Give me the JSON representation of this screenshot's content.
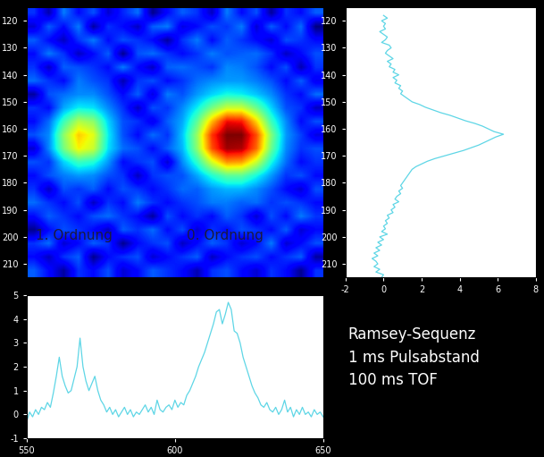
{
  "chart_data": [
    {
      "type": "heatmap",
      "xlim": [
        550,
        650
      ],
      "ylim": [
        215,
        115
      ],
      "yticks": [
        120,
        130,
        140,
        150,
        160,
        170,
        180,
        190,
        200,
        210
      ],
      "tick_labels": "y",
      "annotations": [
        "1. Ordnung",
        "0. Ordnung"
      ],
      "cells": [
        [
          0.3,
          -0.6,
          0.8,
          0.0,
          0.5,
          -0.4,
          0.2,
          0.7,
          -0.8,
          0.0,
          0.6,
          0.3,
          -0.5,
          0.8,
          0.0,
          0.5,
          -0.7,
          0.3,
          0.0,
          0.6
        ],
        [
          -0.4,
          0.6,
          0.0,
          0.8,
          -0.7,
          0.3,
          0.0,
          -0.5,
          0.6,
          0.8,
          -0.3,
          0.0,
          0.5,
          0.3,
          0.8,
          -0.4,
          0.6,
          0.0,
          0.7,
          -0.9
        ],
        [
          0.6,
          0.0,
          -0.5,
          0.3,
          0.8,
          0.0,
          0.5,
          0.3,
          0.0,
          -0.7,
          0.3,
          0.8,
          0.0,
          0.6,
          0.3,
          0.0,
          -0.4,
          0.5,
          0.3,
          0.0
        ],
        [
          0.0,
          0.8,
          0.3,
          -0.5,
          0.0,
          0.6,
          -0.8,
          0.5,
          0.7,
          0.3,
          0.0,
          0.3,
          0.8,
          0.5,
          0.6,
          0.7,
          0.3,
          -0.5,
          0.0,
          0.5
        ],
        [
          0.3,
          -0.5,
          0.6,
          0.5,
          0.3,
          0.0,
          0.8,
          0.0,
          -0.5,
          0.6,
          0.7,
          0.5,
          0.3,
          0.9,
          0.8,
          0.5,
          0.0,
          0.5,
          -0.6,
          0.3
        ],
        [
          0.7,
          0.3,
          0.0,
          0.8,
          0.5,
          0.3,
          -0.6,
          0.3,
          0.5,
          0.0,
          0.3,
          0.7,
          0.9,
          1.0,
          1.0,
          0.8,
          0.5,
          0.0,
          0.6,
          -0.2
        ],
        [
          -0.7,
          0.5,
          0.7,
          0.9,
          0.9,
          0.5,
          0.0,
          0.6,
          -0.3,
          0.8,
          0.5,
          1.0,
          1.4,
          1.7,
          1.6,
          1.3,
          0.9,
          0.3,
          0.0,
          0.7
        ],
        [
          0.3,
          0.0,
          1.1,
          1.6,
          1.5,
          0.9,
          0.3,
          -0.5,
          0.5,
          0.3,
          0.9,
          1.6,
          2.5,
          3.2,
          3.2,
          2.4,
          1.4,
          0.5,
          0.3,
          -0.5
        ],
        [
          0.0,
          0.7,
          2.0,
          3.0,
          2.7,
          1.4,
          0.5,
          0.3,
          -0.2,
          0.6,
          1.1,
          2.3,
          4.0,
          5.3,
          5.2,
          3.8,
          2.0,
          0.9,
          0.0,
          0.5
        ],
        [
          0.5,
          0.9,
          2.7,
          3.9,
          3.4,
          1.6,
          0.5,
          0.0,
          0.7,
          0.3,
          1.3,
          2.8,
          5.0,
          6.0,
          6.0,
          4.8,
          2.6,
          1.0,
          0.4,
          -0.3
        ],
        [
          -0.4,
          0.9,
          2.5,
          3.6,
          3.2,
          1.5,
          0.7,
          0.5,
          0.0,
          0.6,
          1.2,
          2.7,
          4.8,
          5.8,
          5.7,
          4.6,
          2.4,
          0.9,
          0.3,
          0.5
        ],
        [
          0.5,
          0.3,
          1.4,
          2.0,
          1.8,
          1.0,
          0.0,
          0.3,
          0.5,
          -0.4,
          0.9,
          1.9,
          3.3,
          4.3,
          4.2,
          3.2,
          1.7,
          0.7,
          0.0,
          0.3
        ],
        [
          0.0,
          0.5,
          0.8,
          1.0,
          0.9,
          0.5,
          0.3,
          -0.5,
          0.3,
          0.5,
          0.5,
          1.1,
          1.8,
          2.3,
          2.3,
          1.7,
          1.0,
          0.3,
          0.5,
          0.0
        ],
        [
          0.3,
          -0.5,
          0.5,
          0.3,
          0.6,
          0.0,
          0.5,
          0.3,
          0.0,
          0.3,
          0.7,
          0.6,
          1.0,
          1.2,
          1.2,
          0.9,
          0.5,
          0.0,
          -0.4,
          0.5
        ],
        [
          0.7,
          0.3,
          0.0,
          0.5,
          -0.5,
          0.3,
          0.0,
          0.8,
          0.3,
          0.0,
          0.3,
          0.5,
          0.8,
          0.8,
          0.6,
          0.7,
          0.3,
          0.5,
          0.3,
          0.0
        ],
        [
          0.0,
          0.6,
          0.3,
          0.0,
          0.5,
          0.7,
          0.3,
          0.0,
          -0.7,
          0.5,
          0.0,
          0.3,
          0.0,
          0.6,
          0.3,
          -0.4,
          0.5,
          0.0,
          0.8,
          0.3
        ],
        [
          -0.8,
          0.0,
          0.5,
          0.3,
          0.0,
          -0.5,
          0.6,
          0.3,
          0.7,
          0.0,
          0.5,
          -0.4,
          0.3,
          0.0,
          0.5,
          0.3,
          0.0,
          0.6,
          -0.4,
          0.0
        ],
        [
          0.3,
          0.7,
          -0.4,
          0.0,
          0.6,
          0.3,
          -0.8,
          0.0,
          0.3,
          0.5,
          -0.5,
          0.0,
          0.6,
          0.3,
          -0.4,
          0.0,
          0.8,
          -0.4,
          0.0,
          0.5
        ],
        [
          0.0,
          -0.5,
          0.3,
          0.6,
          -0.8,
          0.0,
          0.3,
          0.5,
          -0.4,
          0.0,
          0.3,
          0.6,
          -0.5,
          0.0,
          0.3,
          0.5,
          0.0,
          0.3,
          0.6,
          -0.7
        ],
        [
          0.6,
          0.0,
          -0.7,
          0.3,
          0.0,
          0.5,
          -0.4,
          0.0,
          0.6,
          0.3,
          0.0,
          -0.6,
          0.3,
          0.5,
          0.0,
          -0.4,
          0.3,
          0.0,
          -0.8,
          0.3
        ]
      ]
    },
    {
      "type": "line",
      "orientation": "horizontal",
      "color": "#5ed6e6",
      "xlim": [
        -2,
        8
      ],
      "xticks": [
        -2,
        0,
        2,
        4,
        6,
        8
      ],
      "ylim": [
        215,
        115
      ],
      "yticks": [
        120,
        130,
        140,
        150,
        160,
        170,
        180,
        190,
        200,
        210
      ],
      "y": [
        118,
        119,
        120,
        121,
        122,
        123,
        124,
        125,
        126,
        127,
        128,
        129,
        130,
        131,
        132,
        133,
        134,
        135,
        136,
        137,
        138,
        139,
        140,
        141,
        142,
        143,
        144,
        145,
        146,
        147,
        148,
        149,
        150,
        151,
        152,
        153,
        154,
        155,
        156,
        157,
        158,
        159,
        160,
        161,
        162,
        163,
        164,
        165,
        166,
        167,
        168,
        169,
        170,
        171,
        172,
        173,
        174,
        175,
        176,
        177,
        178,
        179,
        180,
        181,
        182,
        183,
        184,
        185,
        186,
        187,
        188,
        189,
        190,
        191,
        192,
        193,
        194,
        195,
        196,
        197,
        198,
        199,
        200,
        201,
        202,
        203,
        204,
        205,
        206,
        207,
        208,
        209,
        210,
        211,
        212,
        213,
        214,
        215
      ],
      "values": [
        0.0,
        0.2,
        -0.1,
        0.1,
        0.0,
        0.1,
        -0.2,
        0.0,
        0.2,
        0.1,
        -0.1,
        0.3,
        0.4,
        0.2,
        0.1,
        0.3,
        0.5,
        0.2,
        0.4,
        0.3,
        0.6,
        0.5,
        0.8,
        0.5,
        0.7,
        0.6,
        0.9,
        0.8,
        1.0,
        0.9,
        1.1,
        1.3,
        1.5,
        1.9,
        2.2,
        2.6,
        3.0,
        3.5,
        3.9,
        4.3,
        4.8,
        5.2,
        5.5,
        5.8,
        6.3,
        5.9,
        5.6,
        5.3,
        5.0,
        4.6,
        4.2,
        3.7,
        3.2,
        2.7,
        2.3,
        2.0,
        1.7,
        1.5,
        1.4,
        1.3,
        1.2,
        1.1,
        1.0,
        0.9,
        1.0,
        0.8,
        0.9,
        0.7,
        0.6,
        0.8,
        0.5,
        0.6,
        0.4,
        0.5,
        0.2,
        0.3,
        0.1,
        0.2,
        0.0,
        0.1,
        -0.1,
        0.2,
        -0.2,
        0.0,
        -0.3,
        -0.1,
        -0.4,
        -0.2,
        -0.5,
        -0.3,
        -0.6,
        -0.4,
        -0.3,
        -0.5,
        -0.2,
        -0.4,
        0.0,
        -0.1
      ]
    },
    {
      "type": "line",
      "color": "#5ed6e6",
      "xlim": [
        550,
        650
      ],
      "xticks": [
        550,
        600,
        650
      ],
      "ylim": [
        -1,
        5
      ],
      "yticks": [
        -1,
        0,
        1,
        2,
        3,
        4,
        5
      ],
      "x": [
        550,
        551,
        552,
        553,
        554,
        555,
        556,
        557,
        558,
        559,
        560,
        561,
        562,
        563,
        564,
        565,
        566,
        567,
        568,
        569,
        570,
        571,
        572,
        573,
        574,
        575,
        576,
        577,
        578,
        579,
        580,
        581,
        582,
        583,
        584,
        585,
        586,
        587,
        588,
        589,
        590,
        591,
        592,
        593,
        594,
        595,
        596,
        597,
        598,
        599,
        600,
        601,
        602,
        603,
        604,
        605,
        606,
        607,
        608,
        609,
        610,
        611,
        612,
        613,
        614,
        615,
        616,
        617,
        618,
        619,
        620,
        621,
        622,
        623,
        624,
        625,
        626,
        627,
        628,
        629,
        630,
        631,
        632,
        633,
        634,
        635,
        636,
        637,
        638,
        639,
        640,
        641,
        642,
        643,
        644,
        645,
        646,
        647,
        648,
        649,
        650
      ],
      "values": [
        -0.3,
        0.1,
        -0.1,
        0.2,
        0.0,
        0.3,
        0.2,
        0.5,
        0.3,
        0.9,
        1.6,
        2.4,
        1.6,
        1.2,
        0.9,
        1.0,
        1.5,
        2.0,
        3.2,
        2.0,
        1.4,
        1.0,
        1.3,
        1.6,
        1.0,
        0.6,
        0.4,
        0.1,
        0.3,
        0.0,
        0.2,
        -0.1,
        0.1,
        0.3,
        0.0,
        0.2,
        -0.1,
        0.1,
        0.0,
        0.2,
        0.4,
        0.1,
        0.3,
        0.0,
        0.6,
        0.2,
        0.1,
        0.3,
        0.4,
        0.2,
        0.6,
        0.3,
        0.5,
        0.4,
        0.8,
        1.0,
        1.3,
        1.6,
        2.0,
        2.3,
        2.6,
        3.0,
        3.4,
        3.8,
        4.3,
        4.4,
        3.8,
        4.2,
        4.7,
        4.4,
        3.5,
        3.4,
        3.0,
        2.4,
        2.0,
        1.6,
        1.2,
        0.9,
        0.7,
        0.4,
        0.3,
        0.5,
        0.2,
        0.1,
        0.3,
        0.0,
        0.2,
        0.6,
        0.1,
        0.3,
        -0.1,
        0.2,
        0.0,
        0.3,
        0.0,
        0.1,
        -0.1,
        0.2,
        0.0,
        0.1,
        -0.1
      ]
    }
  ],
  "text": [
    "Ramsey-Sequenz",
    "1 ms Pulsabstand",
    "100 ms TOF"
  ]
}
